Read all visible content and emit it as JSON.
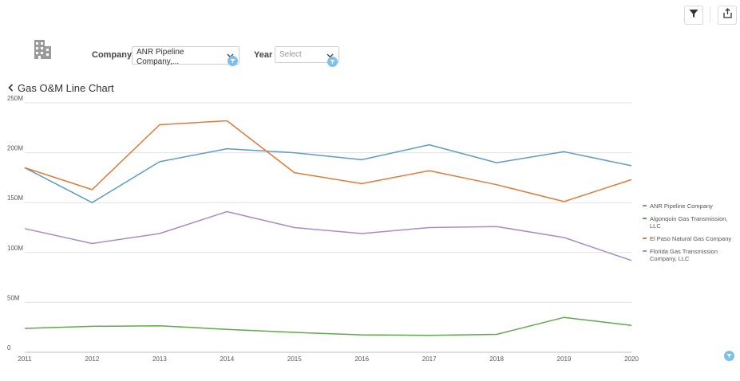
{
  "toolbar": {
    "filter_icon": "filter-icon",
    "export_icon": "share-export-icon"
  },
  "filters": {
    "company_label": "Company",
    "company_value_line1": "ANR Pipeline",
    "company_value_line2": "Company,...",
    "year_label": "Year",
    "year_placeholder": "Select"
  },
  "chart_title": "Gas O&M Line Chart",
  "colors": {
    "ANR Pipeline Company": "#5d9cc4",
    "Algonquin Gas Transmission, LLC": "#5ea94a",
    "El Paso Natural Gas Company": "#e07b39",
    "Florida Gas Transmission Company, LLC": "#a98bc9"
  },
  "chart_data": {
    "type": "line",
    "title": "Gas O&M Line Chart",
    "xlabel": "",
    "ylabel": "",
    "x": [
      2011,
      2012,
      2013,
      2014,
      2015,
      2016,
      2017,
      2018,
      2019,
      2020
    ],
    "ylim": [
      0,
      250
    ],
    "y_ticks": [
      "0",
      "50M",
      "100M",
      "150M",
      "200M",
      "250M"
    ],
    "grid": true,
    "legend_position": "right",
    "series": [
      {
        "name": "ANR Pipeline Company",
        "legend_lines": [
          "ANR Pipeline Company"
        ],
        "values": [
          185,
          150,
          191,
          204,
          200,
          193,
          208,
          190,
          201,
          187
        ]
      },
      {
        "name": "Algonquin Gas Transmission, LLC",
        "legend_lines": [
          "Algonquin Gas Transmission,",
          "LLC"
        ],
        "values": [
          24,
          26,
          26.5,
          23,
          20,
          17.5,
          17,
          18,
          35,
          27
        ]
      },
      {
        "name": "El Paso Natural Gas Company",
        "legend_lines": [
          "El Paso Natural Gas Company"
        ],
        "values": [
          185,
          163,
          228,
          232,
          180,
          169,
          182,
          168,
          151,
          173
        ]
      },
      {
        "name": "Florida Gas Transmission Company, LLC",
        "legend_lines": [
          "Florida Gas Transmission",
          "Company, LLC"
        ],
        "values": [
          124,
          109,
          119,
          141,
          125,
          119,
          125,
          126,
          115,
          92
        ]
      }
    ]
  }
}
